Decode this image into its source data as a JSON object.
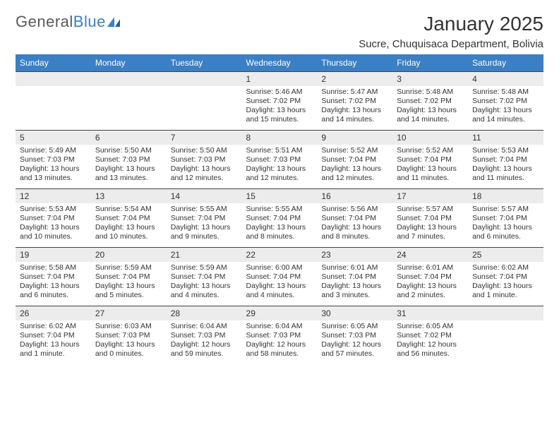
{
  "logo": {
    "text_a": "General",
    "text_b": "Blue"
  },
  "title": "January 2025",
  "location": "Sucre, Chuquisaca Department, Bolivia",
  "colors": {
    "header_bg": "#3b7fc4",
    "header_fg": "#ffffff",
    "daynum_bg": "#ececec",
    "rule": "#444444",
    "text": "#333333",
    "page_bg": "#ffffff"
  },
  "day_names": [
    "Sunday",
    "Monday",
    "Tuesday",
    "Wednesday",
    "Thursday",
    "Friday",
    "Saturday"
  ],
  "weeks": [
    [
      {
        "num": "",
        "sunrise": "",
        "sunset": "",
        "daylight1": "",
        "daylight2": ""
      },
      {
        "num": "",
        "sunrise": "",
        "sunset": "",
        "daylight1": "",
        "daylight2": ""
      },
      {
        "num": "",
        "sunrise": "",
        "sunset": "",
        "daylight1": "",
        "daylight2": ""
      },
      {
        "num": "1",
        "sunrise": "Sunrise: 5:46 AM",
        "sunset": "Sunset: 7:02 PM",
        "daylight1": "Daylight: 13 hours",
        "daylight2": "and 15 minutes."
      },
      {
        "num": "2",
        "sunrise": "Sunrise: 5:47 AM",
        "sunset": "Sunset: 7:02 PM",
        "daylight1": "Daylight: 13 hours",
        "daylight2": "and 14 minutes."
      },
      {
        "num": "3",
        "sunrise": "Sunrise: 5:48 AM",
        "sunset": "Sunset: 7:02 PM",
        "daylight1": "Daylight: 13 hours",
        "daylight2": "and 14 minutes."
      },
      {
        "num": "4",
        "sunrise": "Sunrise: 5:48 AM",
        "sunset": "Sunset: 7:02 PM",
        "daylight1": "Daylight: 13 hours",
        "daylight2": "and 14 minutes."
      }
    ],
    [
      {
        "num": "5",
        "sunrise": "Sunrise: 5:49 AM",
        "sunset": "Sunset: 7:03 PM",
        "daylight1": "Daylight: 13 hours",
        "daylight2": "and 13 minutes."
      },
      {
        "num": "6",
        "sunrise": "Sunrise: 5:50 AM",
        "sunset": "Sunset: 7:03 PM",
        "daylight1": "Daylight: 13 hours",
        "daylight2": "and 13 minutes."
      },
      {
        "num": "7",
        "sunrise": "Sunrise: 5:50 AM",
        "sunset": "Sunset: 7:03 PM",
        "daylight1": "Daylight: 13 hours",
        "daylight2": "and 12 minutes."
      },
      {
        "num": "8",
        "sunrise": "Sunrise: 5:51 AM",
        "sunset": "Sunset: 7:03 PM",
        "daylight1": "Daylight: 13 hours",
        "daylight2": "and 12 minutes."
      },
      {
        "num": "9",
        "sunrise": "Sunrise: 5:52 AM",
        "sunset": "Sunset: 7:04 PM",
        "daylight1": "Daylight: 13 hours",
        "daylight2": "and 12 minutes."
      },
      {
        "num": "10",
        "sunrise": "Sunrise: 5:52 AM",
        "sunset": "Sunset: 7:04 PM",
        "daylight1": "Daylight: 13 hours",
        "daylight2": "and 11 minutes."
      },
      {
        "num": "11",
        "sunrise": "Sunrise: 5:53 AM",
        "sunset": "Sunset: 7:04 PM",
        "daylight1": "Daylight: 13 hours",
        "daylight2": "and 11 minutes."
      }
    ],
    [
      {
        "num": "12",
        "sunrise": "Sunrise: 5:53 AM",
        "sunset": "Sunset: 7:04 PM",
        "daylight1": "Daylight: 13 hours",
        "daylight2": "and 10 minutes."
      },
      {
        "num": "13",
        "sunrise": "Sunrise: 5:54 AM",
        "sunset": "Sunset: 7:04 PM",
        "daylight1": "Daylight: 13 hours",
        "daylight2": "and 10 minutes."
      },
      {
        "num": "14",
        "sunrise": "Sunrise: 5:55 AM",
        "sunset": "Sunset: 7:04 PM",
        "daylight1": "Daylight: 13 hours",
        "daylight2": "and 9 minutes."
      },
      {
        "num": "15",
        "sunrise": "Sunrise: 5:55 AM",
        "sunset": "Sunset: 7:04 PM",
        "daylight1": "Daylight: 13 hours",
        "daylight2": "and 8 minutes."
      },
      {
        "num": "16",
        "sunrise": "Sunrise: 5:56 AM",
        "sunset": "Sunset: 7:04 PM",
        "daylight1": "Daylight: 13 hours",
        "daylight2": "and 8 minutes."
      },
      {
        "num": "17",
        "sunrise": "Sunrise: 5:57 AM",
        "sunset": "Sunset: 7:04 PM",
        "daylight1": "Daylight: 13 hours",
        "daylight2": "and 7 minutes."
      },
      {
        "num": "18",
        "sunrise": "Sunrise: 5:57 AM",
        "sunset": "Sunset: 7:04 PM",
        "daylight1": "Daylight: 13 hours",
        "daylight2": "and 6 minutes."
      }
    ],
    [
      {
        "num": "19",
        "sunrise": "Sunrise: 5:58 AM",
        "sunset": "Sunset: 7:04 PM",
        "daylight1": "Daylight: 13 hours",
        "daylight2": "and 6 minutes."
      },
      {
        "num": "20",
        "sunrise": "Sunrise: 5:59 AM",
        "sunset": "Sunset: 7:04 PM",
        "daylight1": "Daylight: 13 hours",
        "daylight2": "and 5 minutes."
      },
      {
        "num": "21",
        "sunrise": "Sunrise: 5:59 AM",
        "sunset": "Sunset: 7:04 PM",
        "daylight1": "Daylight: 13 hours",
        "daylight2": "and 4 minutes."
      },
      {
        "num": "22",
        "sunrise": "Sunrise: 6:00 AM",
        "sunset": "Sunset: 7:04 PM",
        "daylight1": "Daylight: 13 hours",
        "daylight2": "and 4 minutes."
      },
      {
        "num": "23",
        "sunrise": "Sunrise: 6:01 AM",
        "sunset": "Sunset: 7:04 PM",
        "daylight1": "Daylight: 13 hours",
        "daylight2": "and 3 minutes."
      },
      {
        "num": "24",
        "sunrise": "Sunrise: 6:01 AM",
        "sunset": "Sunset: 7:04 PM",
        "daylight1": "Daylight: 13 hours",
        "daylight2": "and 2 minutes."
      },
      {
        "num": "25",
        "sunrise": "Sunrise: 6:02 AM",
        "sunset": "Sunset: 7:04 PM",
        "daylight1": "Daylight: 13 hours",
        "daylight2": "and 1 minute."
      }
    ],
    [
      {
        "num": "26",
        "sunrise": "Sunrise: 6:02 AM",
        "sunset": "Sunset: 7:04 PM",
        "daylight1": "Daylight: 13 hours",
        "daylight2": "and 1 minute."
      },
      {
        "num": "27",
        "sunrise": "Sunrise: 6:03 AM",
        "sunset": "Sunset: 7:03 PM",
        "daylight1": "Daylight: 13 hours",
        "daylight2": "and 0 minutes."
      },
      {
        "num": "28",
        "sunrise": "Sunrise: 6:04 AM",
        "sunset": "Sunset: 7:03 PM",
        "daylight1": "Daylight: 12 hours",
        "daylight2": "and 59 minutes."
      },
      {
        "num": "29",
        "sunrise": "Sunrise: 6:04 AM",
        "sunset": "Sunset: 7:03 PM",
        "daylight1": "Daylight: 12 hours",
        "daylight2": "and 58 minutes."
      },
      {
        "num": "30",
        "sunrise": "Sunrise: 6:05 AM",
        "sunset": "Sunset: 7:03 PM",
        "daylight1": "Daylight: 12 hours",
        "daylight2": "and 57 minutes."
      },
      {
        "num": "31",
        "sunrise": "Sunrise: 6:05 AM",
        "sunset": "Sunset: 7:02 PM",
        "daylight1": "Daylight: 12 hours",
        "daylight2": "and 56 minutes."
      },
      {
        "num": "",
        "sunrise": "",
        "sunset": "",
        "daylight1": "",
        "daylight2": ""
      }
    ]
  ]
}
